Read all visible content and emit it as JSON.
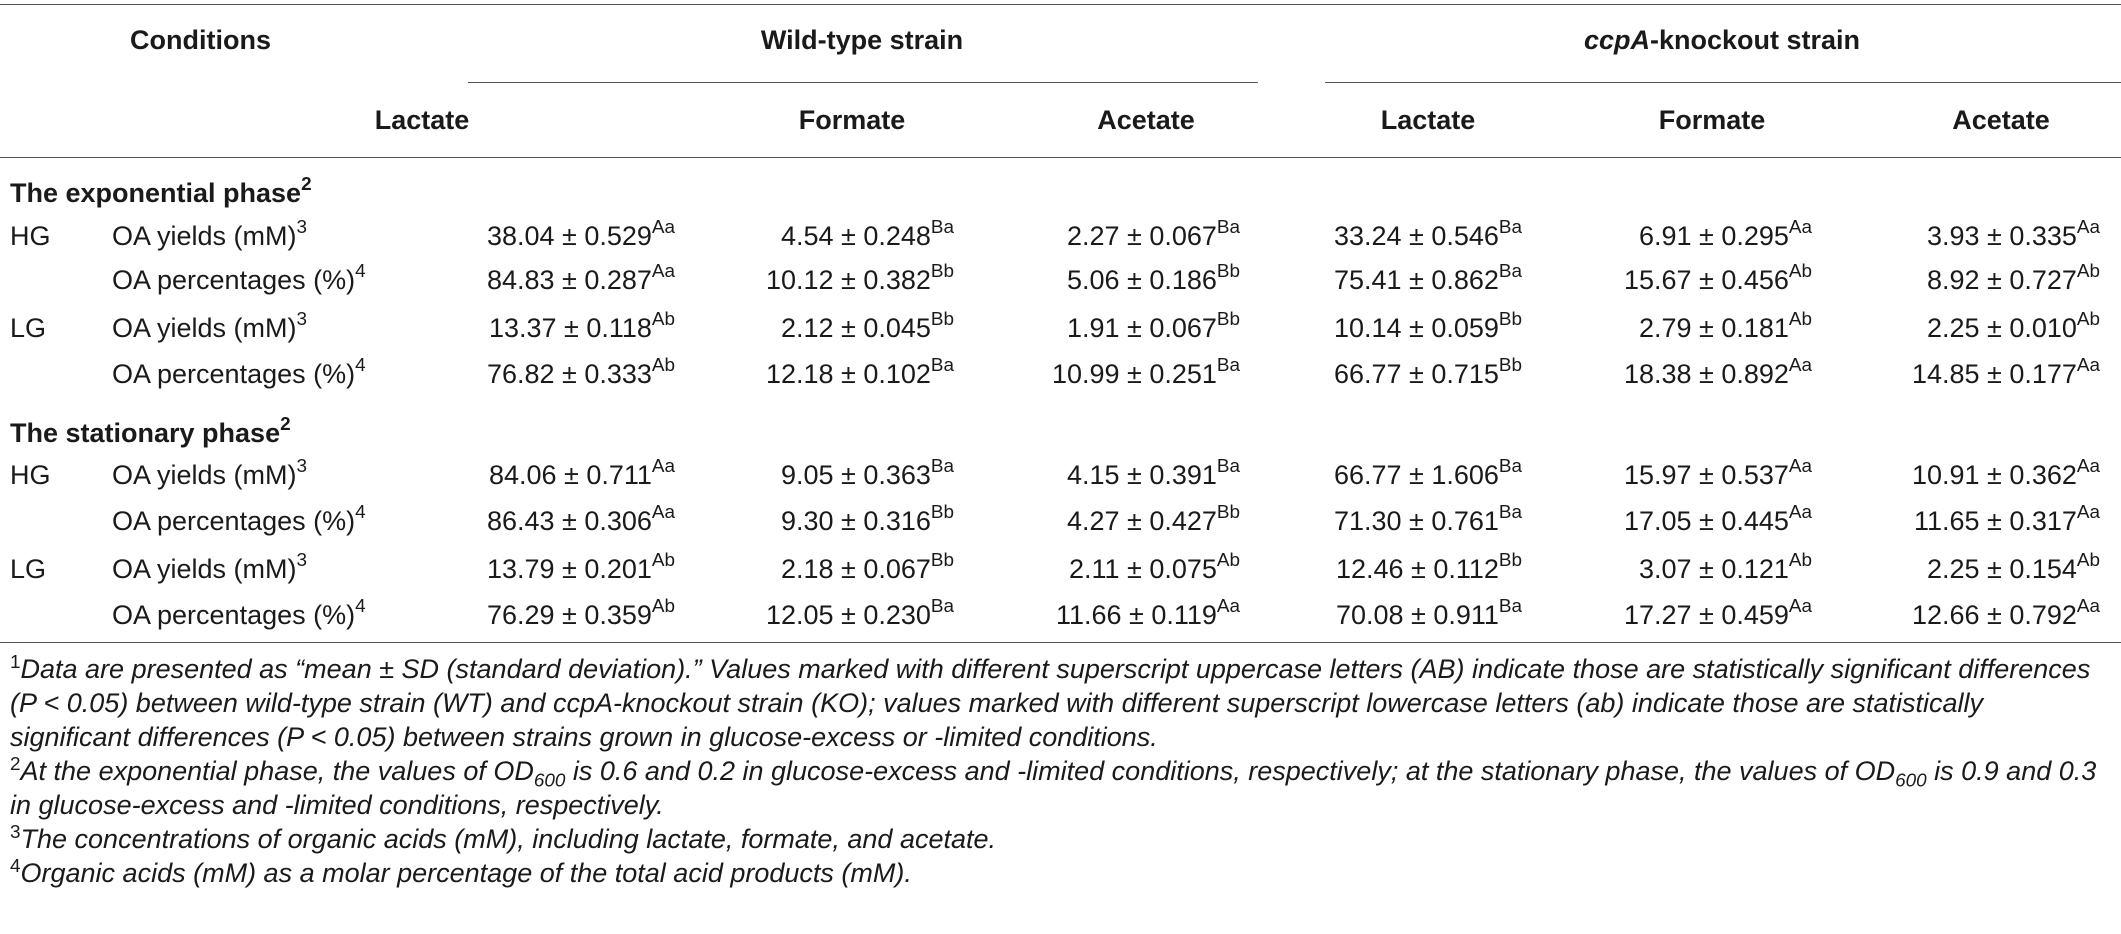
{
  "header": {
    "conditions": "Conditions",
    "wild_type": "Wild-type strain",
    "knockout_italic": "ccpA",
    "knockout_rest": "-knockout strain",
    "columns": [
      "Lactate",
      "Formate",
      "Acetate",
      "Lactate",
      "Formate",
      "Acetate"
    ]
  },
  "sections": [
    {
      "title": "The exponential phase",
      "title_sup": "2",
      "rows": [
        {
          "group": "HG",
          "label": "OA yields (mM)",
          "label_sup": "3",
          "cells": [
            [
              "38.04 ± 0.529",
              "Aa"
            ],
            [
              "4.54 ± 0.248",
              "Ba"
            ],
            [
              "2.27 ± 0.067",
              "Ba"
            ],
            [
              "33.24 ± 0.546",
              "Ba"
            ],
            [
              "6.91 ± 0.295",
              "Aa"
            ],
            [
              "3.93 ± 0.335",
              "Aa"
            ]
          ]
        },
        {
          "group": "",
          "label": "OA percentages (%)",
          "label_sup": "4",
          "cells": [
            [
              "84.83 ± 0.287",
              "Aa"
            ],
            [
              "10.12 ± 0.382",
              "Bb"
            ],
            [
              "5.06 ± 0.186",
              "Bb"
            ],
            [
              "75.41 ± 0.862",
              "Ba"
            ],
            [
              "15.67 ± 0.456",
              "Ab"
            ],
            [
              "8.92 ± 0.727",
              "Ab"
            ]
          ]
        },
        {
          "group": "LG",
          "label": "OA yields (mM)",
          "label_sup": "3",
          "cells": [
            [
              "13.37 ± 0.118",
              "Ab"
            ],
            [
              "2.12 ± 0.045",
              "Bb"
            ],
            [
              "1.91 ± 0.067",
              "Bb"
            ],
            [
              "10.14 ± 0.059",
              "Bb"
            ],
            [
              "2.79 ± 0.181",
              "Ab"
            ],
            [
              "2.25 ± 0.010",
              "Ab"
            ]
          ]
        },
        {
          "group": "",
          "label": "OA percentages (%)",
          "label_sup": "4",
          "cells": [
            [
              "76.82 ± 0.333",
              "Ab"
            ],
            [
              "12.18 ± 0.102",
              "Ba"
            ],
            [
              "10.99 ± 0.251",
              "Ba"
            ],
            [
              "66.77 ± 0.715",
              "Bb"
            ],
            [
              "18.38 ± 0.892",
              "Aa"
            ],
            [
              "14.85 ± 0.177",
              "Aa"
            ]
          ]
        }
      ]
    },
    {
      "title": "The stationary phase",
      "title_sup": "2",
      "rows": [
        {
          "group": "HG",
          "label": "OA yields (mM)",
          "label_sup": "3",
          "cells": [
            [
              "84.06 ± 0.711",
              "Aa"
            ],
            [
              "9.05 ± 0.363",
              "Ba"
            ],
            [
              "4.15 ± 0.391",
              "Ba"
            ],
            [
              "66.77 ± 1.606",
              "Ba"
            ],
            [
              "15.97 ± 0.537",
              "Aa"
            ],
            [
              "10.91 ± 0.362",
              "Aa"
            ]
          ]
        },
        {
          "group": "",
          "label": "OA percentages (%)",
          "label_sup": "4",
          "cells": [
            [
              "86.43 ± 0.306",
              "Aa"
            ],
            [
              "9.30 ± 0.316",
              "Bb"
            ],
            [
              "4.27 ± 0.427",
              "Bb"
            ],
            [
              "71.30 ± 0.761",
              "Ba"
            ],
            [
              "17.05 ± 0.445",
              "Aa"
            ],
            [
              "11.65 ± 0.317",
              "Aa"
            ]
          ]
        },
        {
          "group": "LG",
          "label": "OA yields (mM)",
          "label_sup": "3",
          "cells": [
            [
              "13.79 ± 0.201",
              "Ab"
            ],
            [
              "2.18 ± 0.067",
              "Bb"
            ],
            [
              "2.11 ± 0.075",
              "Ab"
            ],
            [
              "12.46 ± 0.112",
              "Bb"
            ],
            [
              "3.07 ± 0.121",
              "Ab"
            ],
            [
              "2.25 ± 0.154",
              "Ab"
            ]
          ]
        },
        {
          "group": "",
          "label": "OA percentages (%)",
          "label_sup": "4",
          "cells": [
            [
              "76.29 ± 0.359",
              "Ab"
            ],
            [
              "12.05 ± 0.230",
              "Ba"
            ],
            [
              "11.66 ± 0.119",
              "Aa"
            ],
            [
              "70.08 ± 0.911",
              "Ba"
            ],
            [
              "17.27 ± 0.459",
              "Aa"
            ],
            [
              "12.66 ± 0.792",
              "Aa"
            ]
          ]
        }
      ]
    }
  ],
  "footnotes": {
    "fn1_num": "1",
    "fn1_text": "Data are presented as “mean ± SD (standard deviation).” Values marked with different superscript uppercase letters (AB) indicate those are statistically significant differences (P < 0.05) between wild-type strain (WT) and ccpA-knockout strain (KO); values marked with different superscript lowercase letters (ab) indicate those are statistically significant differences (P < 0.05) between strains grown in glucose-excess or -limited conditions.",
    "fn2_num": "2",
    "fn2_a": "At the exponential phase, the values of OD",
    "fn2_sub1": "600",
    "fn2_b": " is 0.6 and 0.2 in glucose-excess and -limited conditions, respectively; at the stationary phase, the values of OD",
    "fn2_sub2": "600",
    "fn2_c": " is 0.9 and 0.3 in glucose-excess and -limited conditions, respectively.",
    "fn3_num": "3",
    "fn3_text": "The concentrations of organic acids (mM), including lactate, formate, and acetate.",
    "fn4_num": "4",
    "fn4_text": "Organic acids (mM) as a molar percentage of the total acid products (mM)."
  }
}
